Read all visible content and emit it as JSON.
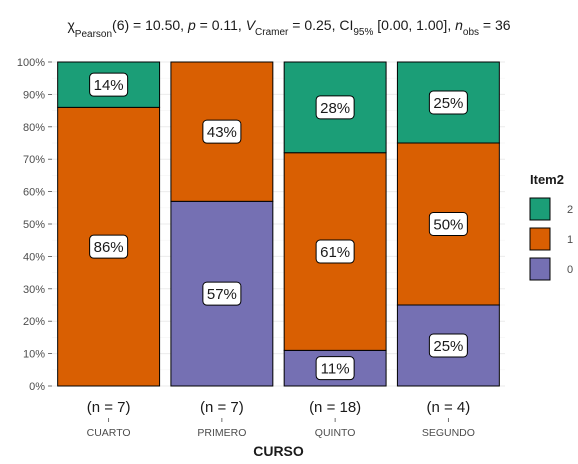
{
  "chart_data": {
    "type": "bar",
    "stacked": true,
    "percent": true,
    "title": "",
    "subtitle_parts": {
      "chi": "χ",
      "chi_sup": "2",
      "chi_sub": "Pearson",
      "chi_rest": "(6) = 10.50, ",
      "p_var": "p",
      "p_rest": " = 0.11, ",
      "v_var": "V",
      "v_hat": "^",
      "v_sub": "Cramer",
      "v_rest": " = 0.25, CI",
      "ci_sub": "95%",
      "ci_rest": " [0.00, 1.00], ",
      "n_var": "n",
      "n_sub": "obs",
      "n_rest": " = 36"
    },
    "xlabel": "CURSO",
    "ylabel": "",
    "ylim": [
      0,
      100
    ],
    "y_ticks": [
      "0%",
      "10%",
      "20%",
      "30%",
      "40%",
      "50%",
      "60%",
      "70%",
      "80%",
      "90%",
      "100%"
    ],
    "categories": [
      "CUARTO",
      "PRIMERO",
      "QUINTO",
      "SEGUNDO"
    ],
    "n_labels": [
      "(n = 7)",
      "(n = 7)",
      "(n = 18)",
      "(n = 4)"
    ],
    "series": [
      {
        "name": "0",
        "color": "#7570b3",
        "values": [
          0,
          57,
          11,
          25
        ],
        "labels": [
          "",
          "57%",
          "11%",
          "25%"
        ]
      },
      {
        "name": "1",
        "color": "#d95f02",
        "values": [
          86,
          43,
          61,
          50
        ],
        "labels": [
          "86%",
          "43%",
          "61%",
          "50%"
        ]
      },
      {
        "name": "2",
        "color": "#1b9e77",
        "values": [
          14,
          0,
          28,
          25
        ],
        "labels": [
          "14%",
          "",
          "28%",
          "25%"
        ]
      }
    ],
    "legend": {
      "title": "Item2",
      "order": [
        "2",
        "1",
        "0"
      ],
      "position": "right"
    },
    "grid": true
  }
}
